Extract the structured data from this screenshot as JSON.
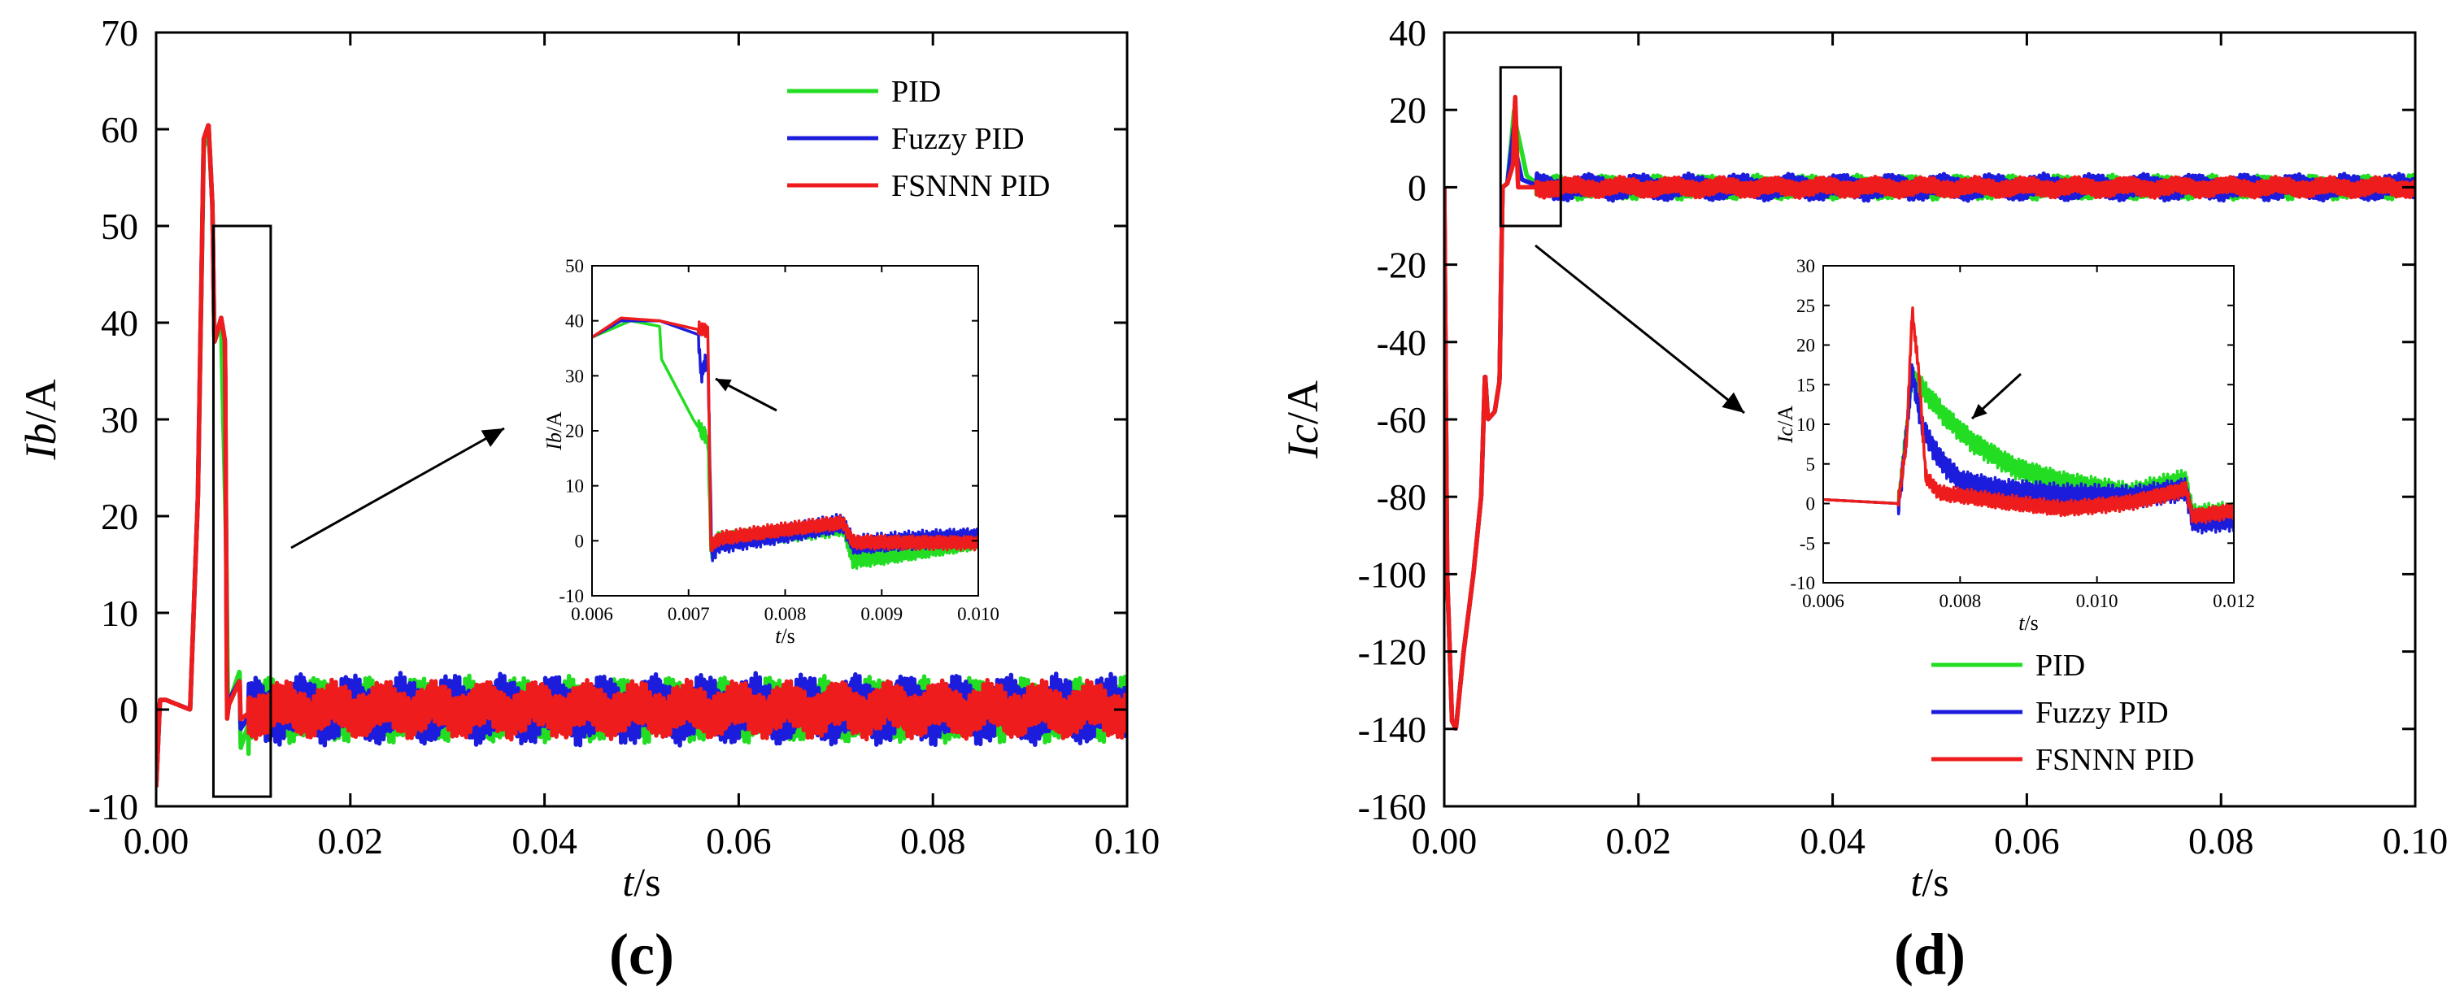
{
  "colors": {
    "PID": "#22dd22",
    "Fuzzy PID": "#1c1cdc",
    "FSNNN PID": "#ee1c1c",
    "axis": "#000000"
  },
  "chart_data": [
    {
      "type": "line",
      "panel": "(c)",
      "panel_label": "(c)",
      "title": "",
      "xlabel": "t/s",
      "ylabel": "Ib/A",
      "xlim": [
        0.0,
        0.1
      ],
      "ylim": [
        -10,
        70
      ],
      "xticks": [
        0.0,
        0.02,
        0.04,
        0.06,
        0.08,
        0.1
      ],
      "xtick_labels": [
        "0.00",
        "0.02",
        "0.04",
        "0.06",
        "0.08",
        "0.10"
      ],
      "yticks": [
        -10,
        0,
        10,
        20,
        30,
        40,
        50,
        60,
        70
      ],
      "ytick_labels": [
        "-10",
        "0",
        "10",
        "20",
        "30",
        "40",
        "50",
        "60",
        "70"
      ],
      "legend": [
        "PID",
        "Fuzzy PID",
        "FSNNN PID"
      ],
      "legend_position": "top-right",
      "zoom_box": {
        "x": [
          0.0059,
          0.0118
        ],
        "y": [
          -9,
          50
        ]
      },
      "series": [
        {
          "name": "PID",
          "x": [
            0.0,
            0.0004,
            0.001,
            0.0035,
            0.0043,
            0.0049,
            0.0054,
            0.0058,
            0.006,
            0.0067,
            0.0068,
            0.0072,
            0.0074,
            0.0076,
            0.0086,
            0.0087,
            0.01,
            0.1
          ],
          "y": [
            -8,
            1,
            1,
            0,
            22,
            58,
            60,
            52,
            38,
            40,
            35,
            18,
            0,
            1,
            4,
            -4,
            0,
            0
          ],
          "ripple": 2.6
        },
        {
          "name": "Fuzzy PID",
          "x": [
            0.0,
            0.0004,
            0.001,
            0.0035,
            0.0043,
            0.0049,
            0.0054,
            0.0058,
            0.006,
            0.0067,
            0.0071,
            0.0073,
            0.0075,
            0.0086,
            0.0087,
            0.01,
            0.1
          ],
          "y": [
            -8,
            1,
            1,
            0,
            22,
            59,
            60.5,
            52,
            38,
            40.5,
            38,
            0,
            1,
            3,
            -2,
            0,
            0
          ],
          "ripple": 2.8
        },
        {
          "name": "FSNNN PID",
          "x": [
            0.0,
            0.0004,
            0.001,
            0.0035,
            0.0043,
            0.0049,
            0.0054,
            0.0058,
            0.006,
            0.0067,
            0.0071,
            0.0073,
            0.0075,
            0.0086,
            0.0087,
            0.01,
            0.1
          ],
          "y": [
            -8,
            1,
            1,
            0,
            22,
            59,
            60.5,
            52,
            38,
            40.5,
            38,
            -1,
            0.5,
            3,
            -1,
            0,
            0
          ],
          "ripple": 2.3
        }
      ],
      "inset": {
        "xlabel": "t/s",
        "ylabel": "Ib/A",
        "xlim": [
          0.006,
          0.01
        ],
        "ylim": [
          -10,
          50
        ],
        "xticks": [
          0.006,
          0.007,
          0.008,
          0.009,
          0.01
        ],
        "xtick_labels": [
          "0.006",
          "0.007",
          "0.008",
          "0.009",
          "0.010"
        ],
        "yticks": [
          -10,
          0,
          10,
          20,
          30,
          40,
          50
        ],
        "ytick_labels": [
          "-10",
          "0",
          "10",
          "20",
          "30",
          "40",
          "50"
        ],
        "series": [
          {
            "name": "PID",
            "x": [
              0.006,
              0.0064,
              0.0067,
              0.00672,
              0.0069,
              0.00705,
              0.0072,
              0.00723,
              0.0073,
              0.0086,
              0.0087,
              0.01
            ],
            "y": [
              37,
              40,
              39,
              33,
              27,
              22,
              18,
              -2,
              0,
              3,
              -3,
              0
            ],
            "ripple": 1.6
          },
          {
            "name": "Fuzzy PID",
            "x": [
              0.006,
              0.0063,
              0.0067,
              0.0071,
              0.00713,
              0.0072,
              0.00724,
              0.0073,
              0.0086,
              0.0087,
              0.01
            ],
            "y": [
              37,
              40,
              40,
              37.5,
              31,
              34,
              -2,
              0,
              3,
              -1,
              0
            ],
            "ripple": 1.8
          },
          {
            "name": "FSNNN PID",
            "x": [
              0.006,
              0.0063,
              0.0067,
              0.0072,
              0.00723,
              0.0073,
              0.0086,
              0.0087,
              0.01
            ],
            "y": [
              37,
              40.5,
              40,
              38,
              -1.5,
              0,
              3,
              -0.5,
              0
            ],
            "ripple": 1.3
          }
        ]
      }
    },
    {
      "type": "line",
      "panel": "(d)",
      "panel_label": "(d)",
      "title": "",
      "xlabel": "t/s",
      "ylabel": "Ic/A",
      "xlim": [
        0.0,
        0.1
      ],
      "ylim": [
        -160,
        40
      ],
      "xticks": [
        0.0,
        0.02,
        0.04,
        0.06,
        0.08,
        0.1
      ],
      "xtick_labels": [
        "0.00",
        "0.02",
        "0.04",
        "0.06",
        "0.08",
        "0.10"
      ],
      "yticks": [
        -160,
        -140,
        -120,
        -100,
        -80,
        -60,
        -40,
        -20,
        0,
        20,
        40
      ],
      "ytick_labels": [
        "-160",
        "-140",
        "-120",
        "-100",
        "-80",
        "-60",
        "-40",
        "-20",
        "0",
        "20",
        "40"
      ],
      "legend": [
        "PID",
        "Fuzzy PID",
        "FSNNN PID"
      ],
      "legend_position": "bottom-right",
      "zoom_box": {
        "x": [
          0.0058,
          0.012
        ],
        "y": [
          -10,
          31
        ]
      },
      "series": [
        {
          "name": "PID",
          "x": [
            0.0,
            0.0003,
            0.0008,
            0.0012,
            0.002,
            0.003,
            0.0038,
            0.0042,
            0.0045,
            0.0052,
            0.0057,
            0.006,
            0.0065,
            0.0072,
            0.0074,
            0.0085,
            0.01,
            0.1
          ],
          "y": [
            0,
            -100,
            -138,
            -140,
            -120,
            -100,
            -80,
            -48,
            -60,
            -58,
            -50,
            0,
            1,
            20,
            16,
            3,
            0,
            0
          ],
          "ripple": 2.4
        },
        {
          "name": "Fuzzy PID",
          "x": [
            0.0,
            0.0003,
            0.0008,
            0.0012,
            0.002,
            0.003,
            0.0038,
            0.0042,
            0.0045,
            0.0052,
            0.0057,
            0.006,
            0.0065,
            0.0072,
            0.0074,
            0.008,
            0.01,
            0.1
          ],
          "y": [
            0,
            -100,
            -138,
            -140,
            -120,
            -100,
            -80,
            -48,
            -60,
            -58,
            -50,
            0,
            1,
            16,
            9,
            2,
            0,
            0
          ],
          "ripple": 2.6
        },
        {
          "name": "FSNNN PID",
          "x": [
            0.0,
            0.0003,
            0.0008,
            0.0012,
            0.002,
            0.003,
            0.0038,
            0.0042,
            0.0045,
            0.0052,
            0.0057,
            0.006,
            0.0065,
            0.0071,
            0.0073,
            0.0076,
            0.01,
            0.1
          ],
          "y": [
            0,
            -100,
            -138,
            -140,
            -120,
            -100,
            -80,
            -48,
            -60,
            -58,
            -50,
            0,
            1,
            6,
            24,
            0,
            0,
            0
          ],
          "ripple": 2.0
        }
      ],
      "inset": {
        "xlabel": "t/s",
        "ylabel": "Ic/A",
        "xlim": [
          0.006,
          0.012
        ],
        "ylim": [
          -10,
          30
        ],
        "xticks": [
          0.006,
          0.008,
          0.01,
          0.012
        ],
        "xtick_labels": [
          "0.006",
          "0.008",
          "0.010",
          "0.012"
        ],
        "yticks": [
          -10,
          -5,
          0,
          5,
          10,
          15,
          20,
          25,
          30
        ],
        "ytick_labels": [
          "-10",
          "-5",
          "0",
          "5",
          "10",
          "15",
          "20",
          "25",
          "30"
        ],
        "series": [
          {
            "name": "PID",
            "x": [
              0.006,
              0.0071,
              0.0072,
              0.0073,
              0.0075,
              0.0078,
              0.0082,
              0.0088,
              0.0095,
              0.0105,
              0.0113,
              0.0114,
              0.012
            ],
            "y": [
              0.5,
              0,
              8,
              16,
              14,
              11,
              8,
              5,
              3,
              1,
              2.5,
              -2,
              -1.5
            ],
            "ripple": 1.4
          },
          {
            "name": "Fuzzy PID",
            "x": [
              0.006,
              0.0071,
              0.0072,
              0.0073,
              0.00745,
              0.0077,
              0.008,
              0.0086,
              0.0095,
              0.0105,
              0.0113,
              0.0114,
              0.012
            ],
            "y": [
              0.5,
              0,
              8,
              17,
              10,
              6,
              3,
              1.5,
              0.5,
              0.5,
              2,
              -2,
              -1.5
            ],
            "ripple": 1.5
          },
          {
            "name": "FSNNN PID",
            "x": [
              0.006,
              0.0071,
              0.00722,
              0.0073,
              0.0074,
              0.0075,
              0.0077,
              0.0086,
              0.0095,
              0.0105,
              0.0113,
              0.0114,
              0.012
            ],
            "y": [
              0.5,
              0,
              8,
              24,
              16,
              3,
              1,
              0,
              -0.5,
              0.5,
              2,
              -1.5,
              -1
            ],
            "ripple": 1.0
          }
        ]
      }
    }
  ]
}
